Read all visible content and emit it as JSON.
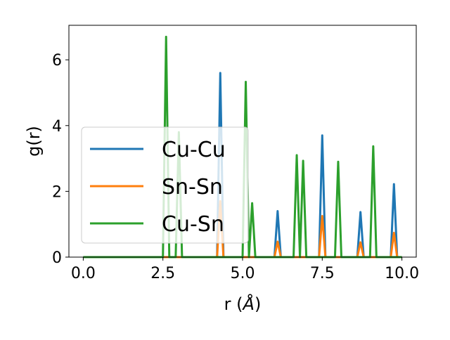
{
  "chart_data": {
    "type": "line",
    "xlabel": "r (",
    "xlabel_unit": "Å",
    "xlabel_close": ")",
    "ylabel": "g(r)",
    "xlim": [
      -0.45,
      10.45
    ],
    "ylim": [
      0,
      7.05
    ],
    "xticks": [
      0.0,
      2.5,
      5.0,
      7.5,
      10.0
    ],
    "xtick_labels": [
      "0.0",
      "2.5",
      "5.0",
      "7.5",
      "10.0"
    ],
    "yticks": [
      0,
      2,
      4,
      6
    ],
    "ytick_labels": [
      "0",
      "2",
      "4",
      "6"
    ],
    "grid": false,
    "legend_position": "center-left",
    "series": [
      {
        "name": "Cu-Cu",
        "color": "#1f77b4",
        "peaks": [
          [
            4.3,
            5.6
          ],
          [
            6.1,
            1.4
          ],
          [
            7.5,
            3.7
          ],
          [
            8.7,
            1.37
          ],
          [
            9.75,
            2.22
          ]
        ]
      },
      {
        "name": "Sn-Sn",
        "color": "#ff7f0e",
        "peaks": [
          [
            4.3,
            1.7
          ],
          [
            6.1,
            0.47
          ],
          [
            7.5,
            1.25
          ],
          [
            8.7,
            0.45
          ],
          [
            9.75,
            0.74
          ]
        ]
      },
      {
        "name": "Cu-Sn",
        "color": "#2ca02c",
        "peaks": [
          [
            2.6,
            6.7
          ],
          [
            3.0,
            3.8
          ],
          [
            5.1,
            5.33
          ],
          [
            5.3,
            1.64
          ],
          [
            6.7,
            3.1
          ],
          [
            6.9,
            2.93
          ],
          [
            8.0,
            2.9
          ],
          [
            9.1,
            3.37
          ]
        ]
      }
    ]
  }
}
